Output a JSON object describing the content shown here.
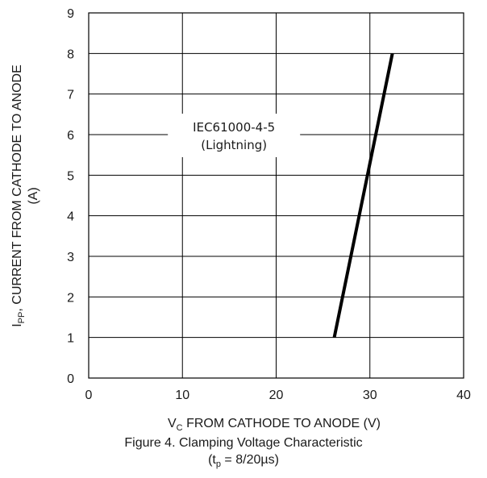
{
  "chart_data": {
    "type": "line",
    "title": "",
    "xlabel": {
      "main": "V",
      "sub": "C",
      "rest": " FROM CATHODE TO ANODE (V)"
    },
    "ylabel": {
      "line1_main": "I",
      "line1_sub": "PP",
      "line1_rest": ", CURRENT FROM CATHODE TO ANODE",
      "line2": "(A)"
    },
    "xlim": [
      0,
      40
    ],
    "ylim": [
      0,
      9
    ],
    "x_ticks": [
      "0",
      "10",
      "20",
      "30",
      "40"
    ],
    "y_ticks": [
      "0",
      "1",
      "2",
      "3",
      "4",
      "5",
      "6",
      "7",
      "8",
      "9"
    ],
    "grid": true,
    "series": [
      {
        "x": [
          26.2,
          32.4
        ],
        "y": [
          1,
          8
        ],
        "color": "#000000"
      }
    ],
    "annotation": {
      "line1": "IEC61000-4-5",
      "line2": "(Lightning)",
      "x": 15.5,
      "y": 6.0
    }
  },
  "caption": {
    "line1": "Figure 4. Clamping Voltage Characteristic",
    "line2_pre": "(t",
    "line2_sub": "p",
    "line2_post": " = 8/20µs)"
  }
}
